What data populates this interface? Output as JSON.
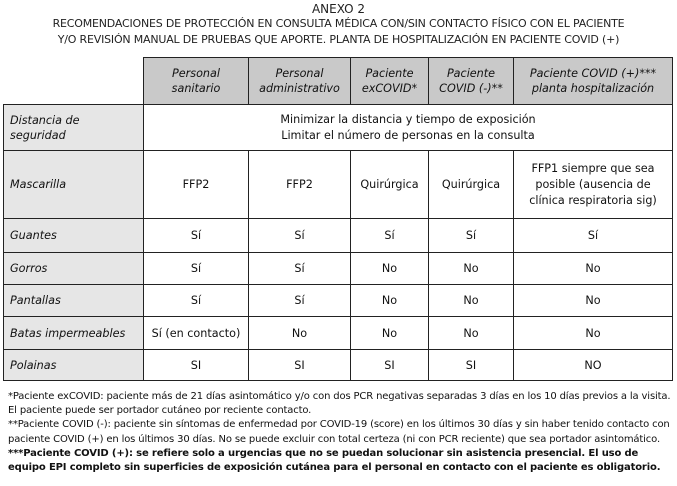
{
  "title": "ANEXO 2",
  "subtitle_line1": "RECOMENDACIONES DE PROTECCIÓN EN CONSULTA MÉDICA CON/SIN CONTACTO FÍSICO CON EL PACIENTE",
  "subtitle_line2": "Y/O REVISIÓN MANUAL DE PRUEBAS QUE APORTE. PLANTA DE HOSPITALIZACIÓN EN PACIENTE COVID (+)",
  "columns": [
    {
      "l1": "Personal",
      "l2": "sanitario"
    },
    {
      "l1": "Personal",
      "l2": "administrativo"
    },
    {
      "l1": "Paciente",
      "l2": "exCOVID*"
    },
    {
      "l1": "Paciente",
      "l2": "COVID (-)**"
    },
    {
      "l1": "Paciente COVID (+)***",
      "l2": "planta hospitalización"
    }
  ],
  "distancia": {
    "l1": "Distancia de",
    "l2": "seguridad",
    "v1": "Minimizar la distancia y tiempo de exposición",
    "v2": "Limitar el número de personas en la consulta"
  },
  "mascarilla": {
    "label": "Mascarilla",
    "values": [
      "FFP2",
      "FFP2",
      "Quirúrgica",
      "Quirúrgica"
    ],
    "last1": "FFP1 siempre que sea",
    "last2": "posible (ausencia de",
    "last3": "clínica respiratoria sig)"
  },
  "rows": [
    {
      "label": "Guantes",
      "values": [
        "Sí",
        "Sí",
        "Sí",
        "Sí",
        "Sí"
      ]
    },
    {
      "label": "Gorros",
      "values": [
        "Sí",
        "Sí",
        "No",
        "No",
        "No"
      ]
    },
    {
      "label": "Pantallas",
      "values": [
        "Sí",
        "Sí",
        "No",
        "No",
        "No"
      ]
    },
    {
      "label": "Batas impermeables",
      "values": [
        "Sí (en contacto)",
        "No",
        "No",
        "No",
        "No"
      ]
    },
    {
      "label": "Polainas",
      "values": [
        "SI",
        "SI",
        "SI",
        "SI",
        "NO"
      ]
    }
  ],
  "notes": {
    "n1": "*Paciente exCOVID: paciente más de 21 días asintomático y/o con dos PCR negativas separadas 3 días en los 10 días previos a la visita. El paciente puede ser portador cutáneo por reciente contacto.",
    "n2": "**Paciente COVID (-): paciente sin síntomas de enfermedad por COVID-19 (score) en los últimos 30 días y sin haber tenido contacto con paciente COVID (+) en los últimos 30 días. No se puede excluir con total certeza (ni con PCR reciente) que sea portador asintomático.",
    "n3": "***Paciente COVID (+): se refiere solo a urgencias que no se puedan solucionar sin asistencia presencial. El uso de equipo EPI completo sin superficies de exposición cutánea para el personal en contacto con el paciente es obligatorio."
  }
}
